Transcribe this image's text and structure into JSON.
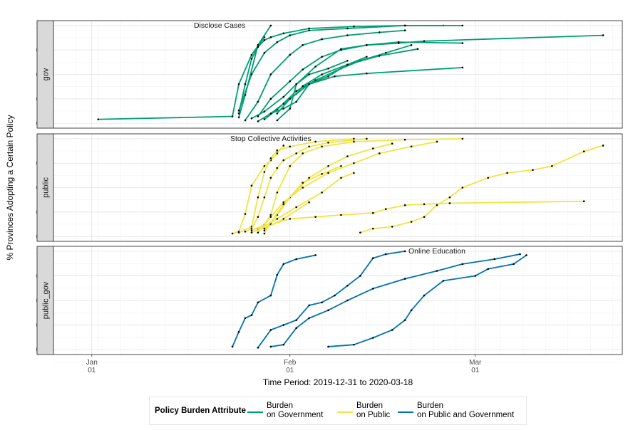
{
  "chart_data": {
    "type": "line",
    "xlabel": "Time Period: 2019-12-31 to 2020-03-18",
    "ylabel": "% Provinces Adopting a Certain Policy",
    "x_range": [
      "2019-12-26",
      "2020-03-24"
    ],
    "x_ticks": [
      {
        "date": "2020-01-01",
        "label": "Jan\n01"
      },
      {
        "date": "2020-02-01",
        "label": "Feb\n01"
      },
      {
        "date": "2020-03-01",
        "label": "Mar\n01"
      }
    ],
    "ylim": [
      -0.05,
      1.05
    ],
    "y_ticks": [
      "0.00",
      "0.25",
      "0.50",
      "0.75",
      "1.00"
    ],
    "grid": true,
    "legend_placement": "bottom",
    "legend": {
      "title": "Policy Burden Attribute",
      "items": [
        {
          "label": "Burden\non Government",
          "color": "#009E73"
        },
        {
          "label": "Burden\non Public",
          "color": "#F0E442"
        },
        {
          "label": "Burden\non Public and Government",
          "color": "#0072B2"
        }
      ]
    },
    "panels": [
      {
        "strip": "gov",
        "color": "#009E73",
        "annotations": [
          {
            "text": "Disclose Cases",
            "date": "2020-01-21",
            "y": 1.0
          }
        ],
        "series": [
          {
            "x": [
              "2020-01-02",
              "2020-01-23",
              "2020-01-24",
              "2020-01-26",
              "2020-01-28"
            ],
            "y": [
              0.04,
              0.07,
              0.4,
              0.7,
              0.88
            ]
          },
          {
            "x": [
              "2020-01-24",
              "2020-01-25",
              "2020-01-27",
              "2020-01-29"
            ],
            "y": [
              0.06,
              0.29,
              0.8,
              1.0
            ]
          },
          {
            "x": [
              "2020-01-24",
              "2020-01-25",
              "2020-01-26",
              "2020-01-27",
              "2020-01-28",
              "2020-01-29",
              "2020-01-31",
              "2020-02-04",
              "2020-02-11",
              "2020-02-19",
              "2020-02-25"
            ],
            "y": [
              0.1,
              0.4,
              0.66,
              0.78,
              0.85,
              0.88,
              0.92,
              0.97,
              0.99,
              1.0,
              1.0
            ]
          },
          {
            "x": [
              "2020-01-24",
              "2020-01-26",
              "2020-01-28",
              "2020-01-30",
              "2020-02-01",
              "2020-02-04",
              "2020-02-10",
              "2020-02-19",
              "2020-02-28"
            ],
            "y": [
              0.13,
              0.5,
              0.72,
              0.83,
              0.9,
              0.95,
              0.97,
              1.0,
              1.0
            ]
          },
          {
            "x": [
              "2020-01-25",
              "2020-01-27",
              "2020-01-29",
              "2020-02-01",
              "2020-02-03",
              "2020-02-06",
              "2020-02-10",
              "2020-02-15",
              "2020-02-19"
            ],
            "y": [
              0.03,
              0.22,
              0.5,
              0.7,
              0.8,
              0.86,
              0.9,
              0.93,
              0.95
            ]
          },
          {
            "x": [
              "2020-01-26",
              "2020-01-28",
              "2020-01-31",
              "2020-02-02",
              "2020-02-05",
              "2020-02-09",
              "2020-02-13",
              "2020-02-18",
              "2020-02-22",
              "2020-03-21"
            ],
            "y": [
              0.05,
              0.12,
              0.27,
              0.4,
              0.58,
              0.76,
              0.8,
              0.82,
              0.84,
              0.9
            ]
          },
          {
            "x": [
              "2020-01-27",
              "2020-01-29",
              "2020-02-01",
              "2020-02-03",
              "2020-02-06",
              "2020-02-09",
              "2020-02-13",
              "2020-02-18",
              "2020-02-28"
            ],
            "y": [
              0.07,
              0.25,
              0.43,
              0.55,
              0.68,
              0.75,
              0.8,
              0.83,
              0.82
            ]
          },
          {
            "x": [
              "2020-01-28",
              "2020-01-30",
              "2020-02-02",
              "2020-02-05",
              "2020-02-09",
              "2020-02-12",
              "2020-02-16",
              "2020-02-20"
            ],
            "y": [
              0.04,
              0.14,
              0.33,
              0.44,
              0.56,
              0.64,
              0.72,
              0.8
            ]
          },
          {
            "x": [
              "2020-01-29",
              "2020-01-31",
              "2020-02-02",
              "2020-02-03",
              "2020-02-06",
              "2020-02-10",
              "2020-02-15",
              "2020-02-21"
            ],
            "y": [
              0.1,
              0.2,
              0.3,
              0.38,
              0.5,
              0.6,
              0.69,
              0.76
            ]
          },
          {
            "x": [
              "2020-01-30",
              "2020-02-01",
              "2020-02-04",
              "2020-02-08",
              "2020-02-13",
              "2020-02-28"
            ],
            "y": [
              0.1,
              0.25,
              0.4,
              0.48,
              0.51,
              0.57
            ]
          },
          {
            "x": [
              "2020-01-30",
              "2020-02-01",
              "2020-02-02",
              "2020-02-04",
              "2020-02-07",
              "2020-02-10"
            ],
            "y": [
              0.03,
              0.15,
              0.4,
              0.5,
              0.56,
              0.64
            ]
          },
          {
            "x": [
              "2020-01-27",
              "2020-01-29",
              "2020-01-31",
              "2020-02-02",
              "2020-02-04",
              "2020-02-07",
              "2020-02-10",
              "2020-02-13"
            ],
            "y": [
              0.02,
              0.1,
              0.15,
              0.22,
              0.4,
              0.48,
              0.6,
              0.68
            ]
          }
        ]
      },
      {
        "strip": "public",
        "color": "#F0E442",
        "annotations": [
          {
            "text": "Stop Collective Activities",
            "date": "2020-01-29",
            "y": 1.0
          }
        ],
        "series": [
          {
            "x": [
              "2020-01-23",
              "2020-01-24",
              "2020-01-25",
              "2020-01-26",
              "2020-01-28",
              "2020-01-29",
              "2020-01-30",
              "2020-01-31"
            ],
            "y": [
              0.03,
              0.05,
              0.23,
              0.52,
              0.72,
              0.78,
              0.85,
              0.93
            ]
          },
          {
            "x": [
              "2020-01-24",
              "2020-01-26",
              "2020-01-27",
              "2020-01-28",
              "2020-01-29",
              "2020-01-30",
              "2020-02-01",
              "2020-02-05",
              "2020-02-11"
            ],
            "y": [
              0.04,
              0.1,
              0.4,
              0.66,
              0.8,
              0.88,
              0.92,
              0.97,
              1.0
            ]
          },
          {
            "x": [
              "2020-01-25",
              "2020-01-26",
              "2020-01-27",
              "2020-01-28",
              "2020-01-29",
              "2020-01-30",
              "2020-01-31",
              "2020-02-02",
              "2020-02-04",
              "2020-02-07",
              "2020-02-13"
            ],
            "y": [
              0.05,
              0.08,
              0.2,
              0.4,
              0.6,
              0.7,
              0.78,
              0.85,
              0.92,
              0.96,
              1.0
            ]
          },
          {
            "x": [
              "2020-01-26",
              "2020-01-28",
              "2020-01-29",
              "2020-01-30",
              "2020-02-01",
              "2020-02-03",
              "2020-02-06",
              "2020-02-11",
              "2020-02-19",
              "2020-02-28"
            ],
            "y": [
              0.06,
              0.12,
              0.22,
              0.45,
              0.72,
              0.85,
              0.92,
              0.97,
              0.99,
              1.0
            ]
          },
          {
            "x": [
              "2020-01-27",
              "2020-01-29",
              "2020-01-31",
              "2020-02-03",
              "2020-02-07",
              "2020-02-11",
              "2020-02-15",
              "2020-02-20",
              "2020-02-24"
            ],
            "y": [
              0.04,
              0.2,
              0.35,
              0.5,
              0.65,
              0.75,
              0.85,
              0.92,
              0.97
            ]
          },
          {
            "x": [
              "2020-01-28",
              "2020-01-30",
              "2020-02-01",
              "2020-02-04",
              "2020-02-07",
              "2020-02-10",
              "2020-02-14",
              "2020-02-17"
            ],
            "y": [
              0.06,
              0.22,
              0.4,
              0.6,
              0.72,
              0.82,
              0.9,
              0.95
            ]
          },
          {
            "x": [
              "2020-01-28",
              "2020-01-29",
              "2020-01-31",
              "2020-02-03",
              "2020-02-06",
              "2020-02-09"
            ],
            "y": [
              0.03,
              0.14,
              0.33,
              0.55,
              0.64,
              0.72
            ]
          },
          {
            "x": [
              "2020-01-27",
              "2020-01-30",
              "2020-02-02",
              "2020-02-06",
              "2020-02-09",
              "2020-02-11"
            ],
            "y": [
              0.07,
              0.18,
              0.3,
              0.45,
              0.6,
              0.65
            ]
          },
          {
            "x": [
              "2020-01-26",
              "2020-01-29",
              "2020-02-01",
              "2020-02-05",
              "2020-02-09",
              "2020-02-14",
              "2020-02-16",
              "2020-02-19",
              "2020-02-22",
              "2020-02-26",
              "2020-03-18"
            ],
            "y": [
              0.04,
              0.12,
              0.18,
              0.2,
              0.22,
              0.24,
              0.28,
              0.32,
              0.33,
              0.34,
              0.36
            ]
          },
          {
            "x": [
              "2020-01-28",
              "2020-01-31",
              "2020-02-04"
            ],
            "y": [
              0.08,
              0.18,
              0.35
            ]
          },
          {
            "x": [
              "2020-02-12",
              "2020-02-14",
              "2020-02-17",
              "2020-02-20",
              "2020-02-22",
              "2020-02-24",
              "2020-02-26",
              "2020-02-28",
              "2020-03-03",
              "2020-03-06",
              "2020-03-10",
              "2020-03-13",
              "2020-03-18",
              "2020-03-21"
            ],
            "y": [
              0.04,
              0.08,
              0.1,
              0.15,
              0.2,
              0.32,
              0.4,
              0.5,
              0.6,
              0.65,
              0.68,
              0.72,
              0.87,
              0.93
            ]
          }
        ]
      },
      {
        "strip": "public_gov",
        "color": "#0072B2",
        "annotations": [
          {
            "text": "Online Education",
            "date": "2020-02-24",
            "y": 1.0
          }
        ],
        "series": [
          {
            "x": [
              "2020-01-23",
              "2020-01-24",
              "2020-01-25",
              "2020-01-26",
              "2020-01-27",
              "2020-01-29",
              "2020-01-30",
              "2020-01-31",
              "2020-02-02",
              "2020-02-05"
            ],
            "y": [
              0.03,
              0.18,
              0.32,
              0.35,
              0.48,
              0.55,
              0.76,
              0.87,
              0.92,
              0.96
            ]
          },
          {
            "x": [
              "2020-01-27",
              "2020-01-29",
              "2020-01-31",
              "2020-02-02",
              "2020-02-04",
              "2020-02-06",
              "2020-02-08",
              "2020-02-10",
              "2020-02-12",
              "2020-02-14",
              "2020-02-16",
              "2020-02-19"
            ],
            "y": [
              0.02,
              0.2,
              0.25,
              0.3,
              0.45,
              0.48,
              0.55,
              0.65,
              0.75,
              0.93,
              0.97,
              1.0
            ]
          },
          {
            "x": [
              "2020-01-29",
              "2020-01-31",
              "2020-02-02",
              "2020-02-04",
              "2020-02-07",
              "2020-02-10",
              "2020-02-14",
              "2020-02-19",
              "2020-02-24",
              "2020-02-28",
              "2020-03-04",
              "2020-03-08"
            ],
            "y": [
              0.03,
              0.05,
              0.22,
              0.32,
              0.4,
              0.5,
              0.62,
              0.72,
              0.8,
              0.87,
              0.92,
              0.97
            ]
          },
          {
            "x": [
              "2020-02-07",
              "2020-02-11",
              "2020-02-14",
              "2020-02-17",
              "2020-02-19",
              "2020-02-20",
              "2020-02-22",
              "2020-02-25",
              "2020-03-01",
              "2020-03-03",
              "2020-03-07",
              "2020-03-09"
            ],
            "y": [
              0.03,
              0.05,
              0.12,
              0.2,
              0.3,
              0.4,
              0.55,
              0.7,
              0.75,
              0.82,
              0.87,
              0.96
            ]
          }
        ]
      }
    ]
  }
}
